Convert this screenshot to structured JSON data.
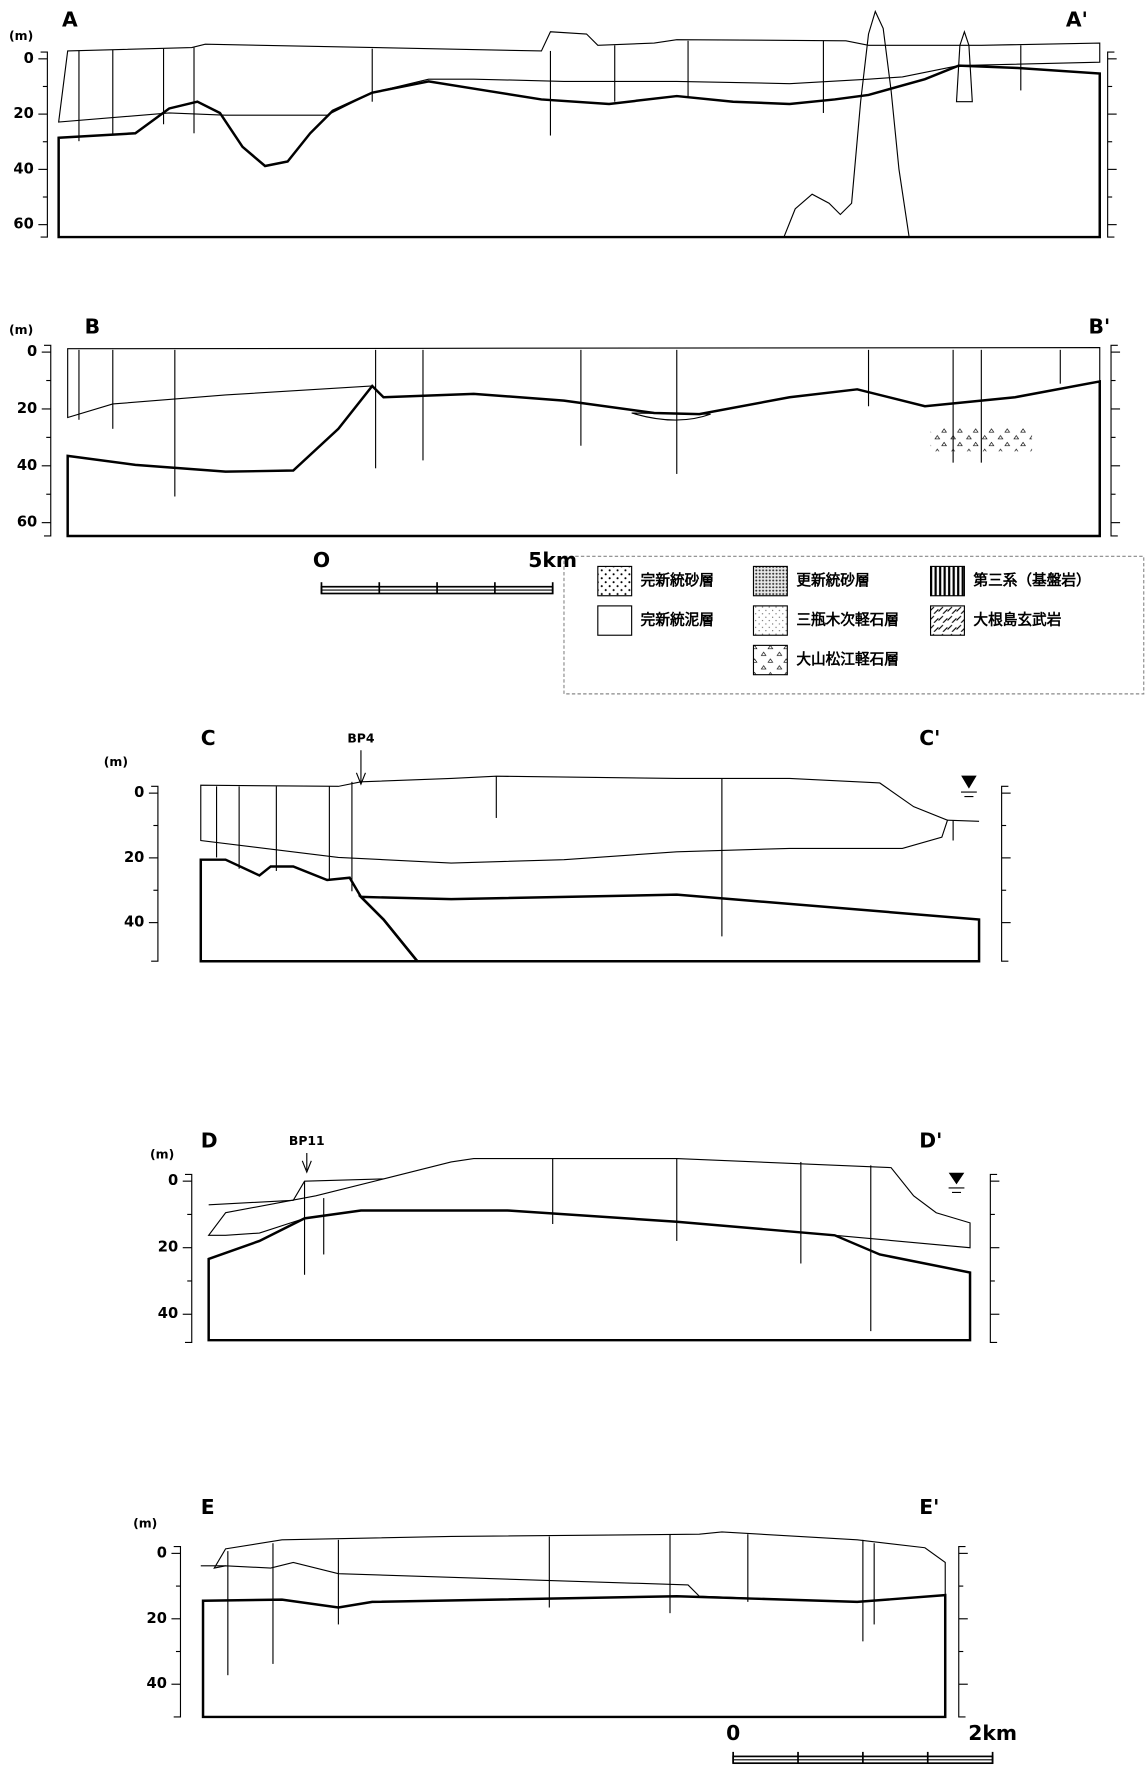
{
  "sections": [
    {
      "left_label": "A",
      "right_label": "A'",
      "unit": "(m)",
      "depth_ticks": [
        0,
        20,
        40,
        60
      ]
    },
    {
      "left_label": "B",
      "right_label": "B'",
      "unit": "(m)",
      "depth_ticks": [
        0,
        20,
        40,
        60
      ]
    },
    {
      "left_label": "C",
      "right_label": "C'",
      "unit": "(m)",
      "depth_ticks": [
        0,
        20,
        40
      ],
      "borehole": "BP4"
    },
    {
      "left_label": "D",
      "right_label": "D'",
      "unit": "(m)",
      "depth_ticks": [
        0,
        20,
        40
      ],
      "borehole": "BP11"
    },
    {
      "left_label": "E",
      "right_label": "E'",
      "unit": "(m)",
      "depth_ticks": [
        0,
        20,
        40
      ]
    }
  ],
  "legend": {
    "items": [
      "完新統砂層",
      "完新統泥層",
      "更新統砂層",
      "三瓶木次軽石層",
      "大山松江軽石層",
      "第三系（基盤岩）",
      "大根島玄武岩"
    ]
  },
  "scale_bars": [
    {
      "start": "O",
      "end": "5km"
    },
    {
      "start": "0",
      "end": "2km"
    }
  ]
}
